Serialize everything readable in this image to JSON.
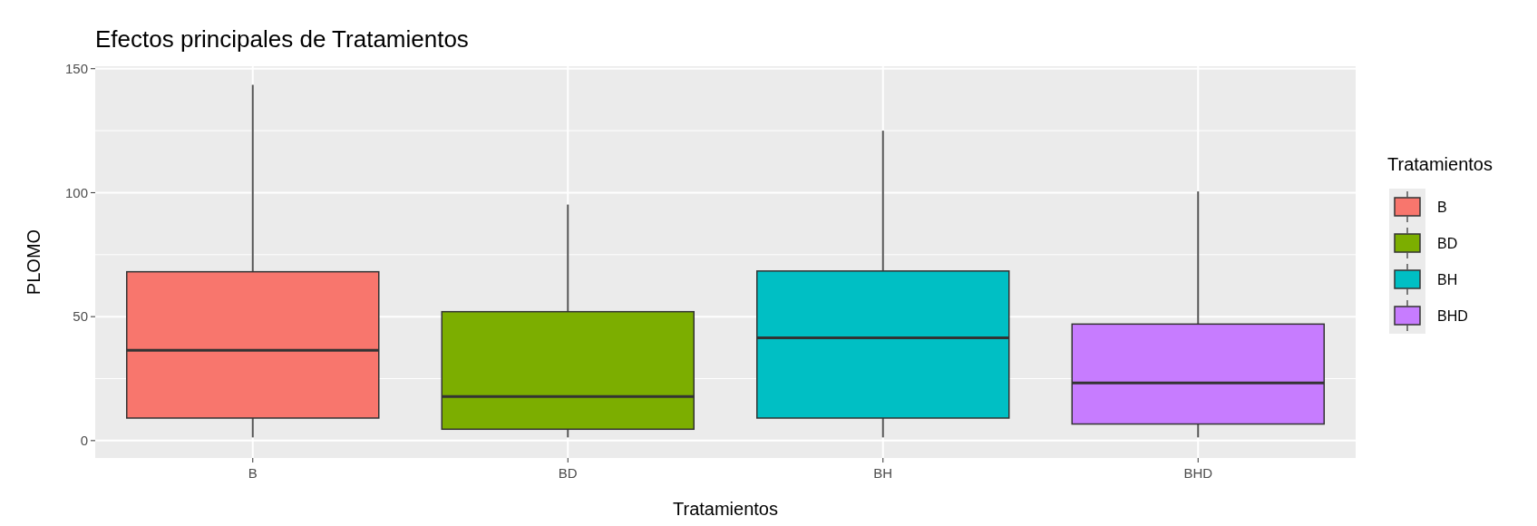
{
  "chart_data": {
    "type": "box",
    "title": "Efectos principales de Tratamientos",
    "xlabel": "Tratamientos",
    "ylabel": "PLOMO",
    "legend_title": "Tratamientos",
    "categories": [
      "B",
      "BD",
      "BH",
      "BHD"
    ],
    "series": [
      {
        "name": "B",
        "color": "#f8766d",
        "boxes": [
          {
            "low": 1.3,
            "q1": 9.1,
            "median": 36.4,
            "q3": 68.1,
            "high": 143.5
          },
          null,
          null,
          null
        ]
      },
      {
        "name": "BD",
        "color": "#7cae00",
        "boxes": [
          null,
          {
            "low": 1.3,
            "q1": 4.6,
            "median": 17.8,
            "q3": 52,
            "high": 95.2
          },
          null,
          null
        ]
      },
      {
        "name": "BH",
        "color": "#00bfc4",
        "boxes": [
          null,
          null,
          {
            "low": 1.3,
            "q1": 9.1,
            "median": 41.5,
            "q3": 68.4,
            "high": 125
          },
          null
        ]
      },
      {
        "name": "BHD",
        "color": "#c77cff",
        "boxes": [
          null,
          null,
          null,
          {
            "low": 1.3,
            "q1": 6.7,
            "median": 23.3,
            "q3": 47,
            "high": 100.5
          }
        ]
      }
    ],
    "ylim": [
      -7,
      151
    ],
    "yticks": [
      0,
      50,
      100,
      150
    ],
    "grid": true,
    "legend": "right"
  }
}
